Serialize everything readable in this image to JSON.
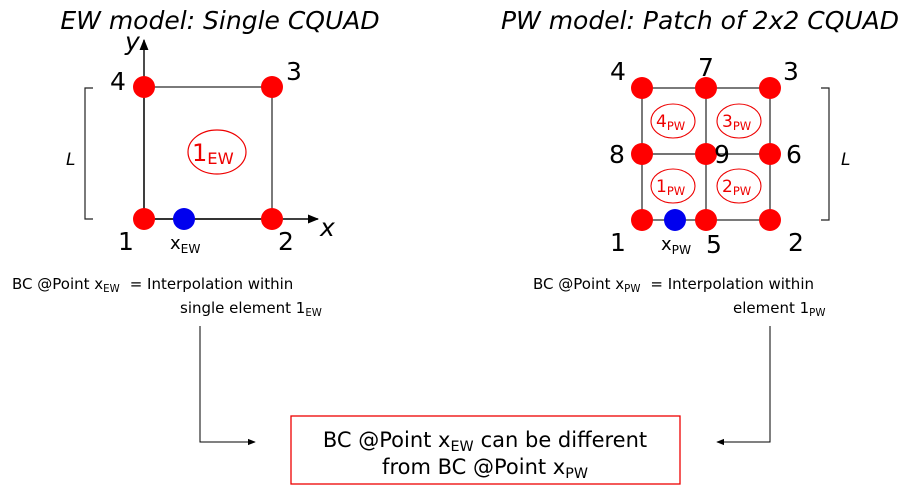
{
  "left": {
    "title": "EW model: Single CQUAD",
    "nodes": [
      "1",
      "2",
      "3",
      "4"
    ],
    "axes": {
      "x": "x",
      "y": "y"
    },
    "point": {
      "label": "x",
      "sub": "EW"
    },
    "element": {
      "label": "1",
      "sub": "EW"
    },
    "dimension": "L",
    "bc": {
      "line1": "BC @Point x",
      "sub1": "EW",
      "rest1": "= Interpolation within",
      "line2": "single element 1",
      "sub2": "EW"
    }
  },
  "right": {
    "title": "PW model: Patch of 2x2 CQUAD",
    "nodes": [
      "1",
      "2",
      "3",
      "4",
      "5",
      "6",
      "7",
      "8",
      "9"
    ],
    "point": {
      "label": "x",
      "sub": "PW"
    },
    "elements": [
      {
        "label": "1",
        "sub": "PW"
      },
      {
        "label": "2",
        "sub": "PW"
      },
      {
        "label": "3",
        "sub": "PW"
      },
      {
        "label": "4",
        "sub": "PW"
      }
    ],
    "dimension": "L",
    "bc": {
      "line1": "BC @Point x",
      "sub1": "PW",
      "rest1": "= Interpolation within",
      "line2": "element 1",
      "sub2": "PW"
    }
  },
  "conclusion": {
    "line1": "BC @Point x",
    "sub1": "EW",
    "rest1": "can be different",
    "line2": "from BC @Point x",
    "sub2": "PW"
  }
}
